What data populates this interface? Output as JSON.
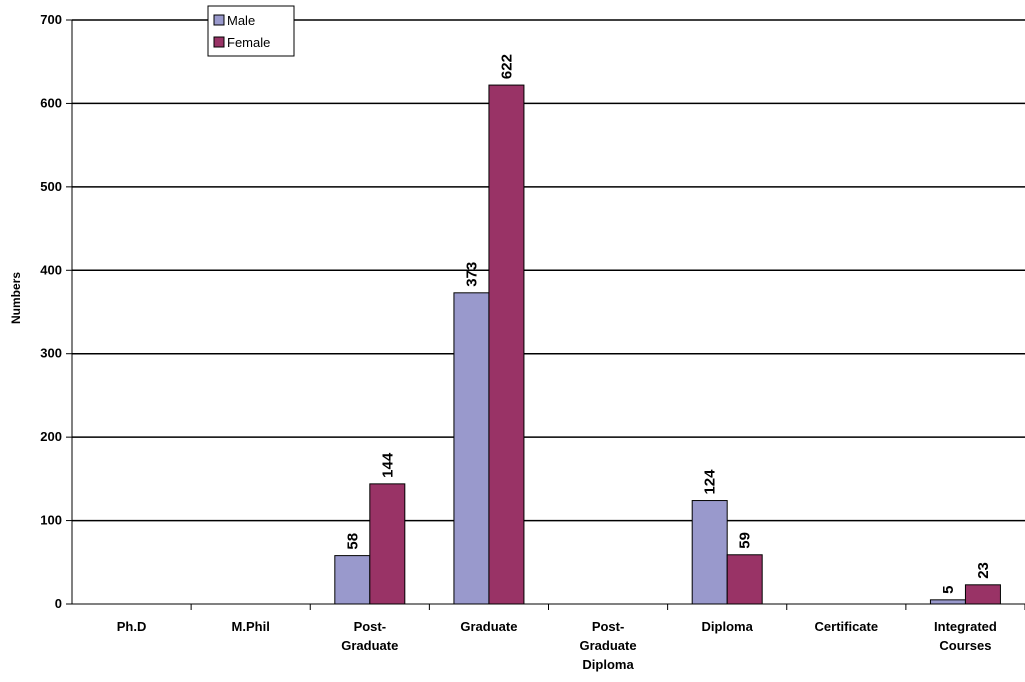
{
  "chart_data": {
    "type": "bar",
    "title": "",
    "xlabel": "",
    "ylabel": "Numbers",
    "ylim": [
      0,
      700
    ],
    "yticks": [
      0,
      100,
      200,
      300,
      400,
      500,
      600,
      700
    ],
    "grid": true,
    "legend_position": "top-left",
    "categories": [
      [
        "Ph.D"
      ],
      [
        "M.Phil"
      ],
      [
        "Post-",
        "Graduate"
      ],
      [
        "Graduate"
      ],
      [
        "Post-",
        "Graduate",
        "Diploma"
      ],
      [
        "Diploma"
      ],
      [
        "Certificate"
      ],
      [
        "Integrated",
        "Courses"
      ]
    ],
    "series": [
      {
        "name": "Male",
        "color": "#9999cc",
        "values": [
          null,
          null,
          58,
          373,
          null,
          124,
          null,
          5
        ]
      },
      {
        "name": "Female",
        "color": "#993366",
        "values": [
          null,
          null,
          144,
          622,
          null,
          59,
          null,
          23
        ]
      }
    ]
  }
}
